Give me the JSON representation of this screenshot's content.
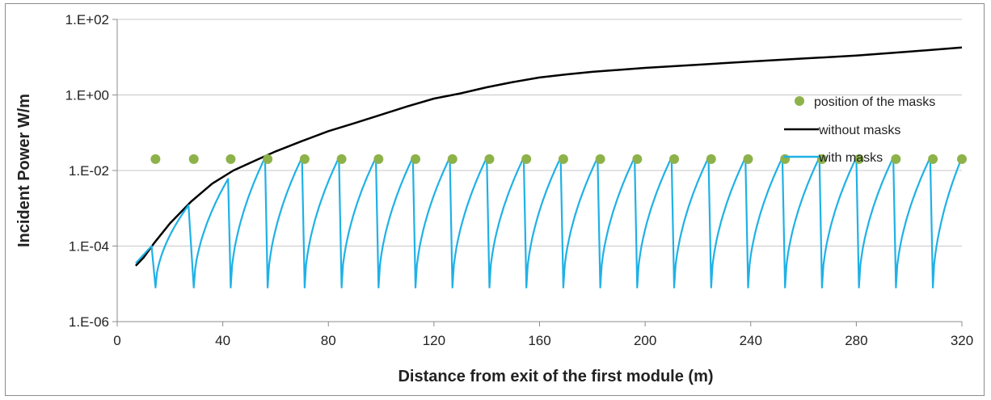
{
  "chart_data": {
    "type": "line",
    "xlabel": "Distance from exit of the first module (m)",
    "ylabel": "Incident Power W/m",
    "xlim": [
      0,
      320
    ],
    "ylim": [
      1e-06,
      100
    ],
    "y_scale": "log",
    "x_ticks": [
      0,
      40,
      80,
      120,
      160,
      200,
      240,
      280,
      320
    ],
    "x_tick_labels": [
      "0",
      "40",
      "80",
      "120",
      "160",
      "200",
      "240",
      "280",
      "320"
    ],
    "y_ticks": [
      1e-06,
      0.0001,
      0.01,
      1,
      100
    ],
    "y_tick_labels": [
      "1.E-06",
      "1.E-04",
      "1.E-02",
      "1.E+00",
      "1.E+02"
    ],
    "grid": "horizontal",
    "legend_position": "right",
    "series": [
      {
        "name": "position of the masks",
        "type": "scatter",
        "color": "#8db24a",
        "x": [
          14.5,
          29,
          43,
          57,
          71,
          85,
          99,
          113,
          127,
          141,
          155,
          169,
          183,
          197,
          211,
          225,
          239,
          253,
          267,
          281,
          295,
          309,
          320
        ],
        "y": [
          0.02,
          0.02,
          0.02,
          0.02,
          0.02,
          0.02,
          0.02,
          0.02,
          0.02,
          0.02,
          0.02,
          0.02,
          0.02,
          0.02,
          0.02,
          0.02,
          0.02,
          0.02,
          0.02,
          0.02,
          0.02,
          0.02,
          0.02
        ]
      },
      {
        "name": "without masks",
        "type": "line",
        "color": "#000000",
        "x": [
          7,
          10,
          14,
          20,
          28,
          36,
          44,
          52,
          60,
          70,
          80,
          90,
          100,
          110,
          120,
          130,
          140,
          150,
          160,
          170,
          180,
          200,
          220,
          240,
          260,
          280,
          300,
          320
        ],
        "y": [
          3e-05,
          5e-05,
          0.00012,
          0.0004,
          0.0015,
          0.0045,
          0.01,
          0.018,
          0.032,
          0.06,
          0.11,
          0.18,
          0.3,
          0.5,
          0.8,
          1.1,
          1.6,
          2.2,
          2.9,
          3.5,
          4.1,
          5.2,
          6.3,
          7.7,
          9.2,
          11,
          14,
          18
        ]
      },
      {
        "name": "with masks",
        "type": "line",
        "color": "#1fb1e6",
        "cycle_start": 7,
        "cycle_end": 320,
        "segments": [
          {
            "start": 7,
            "end": 13,
            "peak": 0.0001
          },
          {
            "start": 14.5,
            "end": 27,
            "peak": 0.0012
          },
          {
            "start": 29,
            "end": 42,
            "peak": 0.006
          },
          {
            "start": 43,
            "end": 56,
            "peak": 0.022
          },
          {
            "start": 57,
            "end": 70,
            "peak": 0.022
          },
          {
            "start": 71,
            "end": 84,
            "peak": 0.022
          },
          {
            "start": 85,
            "end": 98,
            "peak": 0.022
          },
          {
            "start": 99,
            "end": 112,
            "peak": 0.022
          },
          {
            "start": 113,
            "end": 126,
            "peak": 0.022
          },
          {
            "start": 127,
            "end": 140,
            "peak": 0.022
          },
          {
            "start": 141,
            "end": 154,
            "peak": 0.022
          },
          {
            "start": 155,
            "end": 168,
            "peak": 0.022
          },
          {
            "start": 169,
            "end": 182,
            "peak": 0.022
          },
          {
            "start": 183,
            "end": 196,
            "peak": 0.022
          },
          {
            "start": 197,
            "end": 210,
            "peak": 0.022
          },
          {
            "start": 211,
            "end": 224,
            "peak": 0.022
          },
          {
            "start": 225,
            "end": 238,
            "peak": 0.022
          },
          {
            "start": 239,
            "end": 252,
            "peak": 0.022
          },
          {
            "start": 253,
            "end": 266,
            "peak": 0.022
          },
          {
            "start": 267,
            "end": 280,
            "peak": 0.022
          },
          {
            "start": 281,
            "end": 294,
            "peak": 0.022
          },
          {
            "start": 295,
            "end": 308,
            "peak": 0.022
          },
          {
            "start": 309,
            "end": 320,
            "peak": 0.022
          }
        ],
        "trough": 8e-06
      }
    ]
  }
}
